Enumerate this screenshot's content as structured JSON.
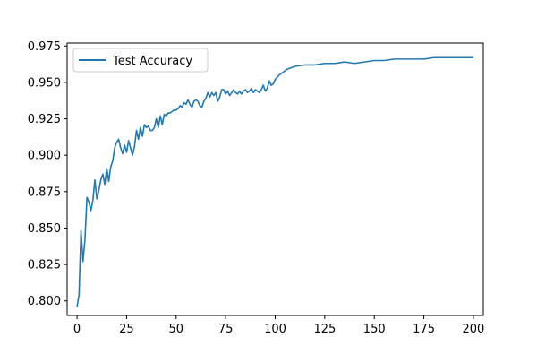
{
  "chart_data": {
    "type": "line",
    "title": "",
    "xlabel": "",
    "ylabel": "",
    "xlim": [
      -5,
      205
    ],
    "ylim": [
      0.79,
      0.977
    ],
    "xticks": [
      0,
      25,
      50,
      75,
      100,
      125,
      150,
      175,
      200
    ],
    "xtick_labels": [
      "0",
      "25",
      "50",
      "75",
      "100",
      "125",
      "150",
      "175",
      "200"
    ],
    "yticks": [
      0.8,
      0.825,
      0.85,
      0.875,
      0.9,
      0.925,
      0.95,
      0.975
    ],
    "ytick_labels": [
      "0.800",
      "0.825",
      "0.850",
      "0.875",
      "0.900",
      "0.925",
      "0.950",
      "0.975"
    ],
    "grid": false,
    "legend": {
      "position": "upper-left"
    },
    "series": [
      {
        "name": "Test Accuracy",
        "color": "#1f77b4",
        "x": [
          0,
          1,
          2,
          3,
          4,
          5,
          6,
          7,
          8,
          9,
          10,
          11,
          12,
          13,
          14,
          15,
          16,
          17,
          18,
          19,
          20,
          21,
          22,
          23,
          24,
          25,
          26,
          27,
          28,
          29,
          30,
          31,
          32,
          33,
          34,
          35,
          36,
          37,
          38,
          39,
          40,
          41,
          42,
          43,
          44,
          45,
          46,
          47,
          48,
          49,
          50,
          51,
          52,
          53,
          54,
          55,
          56,
          57,
          58,
          59,
          60,
          61,
          62,
          63,
          64,
          65,
          66,
          67,
          68,
          69,
          70,
          71,
          72,
          73,
          74,
          75,
          76,
          77,
          78,
          79,
          80,
          81,
          82,
          83,
          84,
          85,
          86,
          87,
          88,
          89,
          90,
          91,
          92,
          93,
          94,
          95,
          96,
          97,
          98,
          99,
          100,
          102,
          104,
          106,
          108,
          110,
          115,
          120,
          125,
          130,
          135,
          140,
          145,
          150,
          155,
          160,
          165,
          170,
          175,
          180,
          185,
          190,
          195,
          200
        ],
        "y": [
          0.796,
          0.804,
          0.848,
          0.827,
          0.842,
          0.871,
          0.868,
          0.862,
          0.869,
          0.883,
          0.87,
          0.876,
          0.883,
          0.887,
          0.88,
          0.891,
          0.882,
          0.892,
          0.896,
          0.905,
          0.909,
          0.911,
          0.905,
          0.901,
          0.907,
          0.902,
          0.91,
          0.905,
          0.9,
          0.906,
          0.917,
          0.911,
          0.919,
          0.913,
          0.921,
          0.919,
          0.92,
          0.917,
          0.917,
          0.919,
          0.925,
          0.919,
          0.927,
          0.921,
          0.928,
          0.927,
          0.929,
          0.929,
          0.93,
          0.931,
          0.931,
          0.932,
          0.934,
          0.933,
          0.936,
          0.935,
          0.938,
          0.935,
          0.933,
          0.937,
          0.938,
          0.937,
          0.934,
          0.933,
          0.937,
          0.939,
          0.943,
          0.94,
          0.943,
          0.941,
          0.943,
          0.937,
          0.94,
          0.945,
          0.945,
          0.942,
          0.944,
          0.941,
          0.943,
          0.945,
          0.943,
          0.942,
          0.944,
          0.942,
          0.944,
          0.945,
          0.943,
          0.944,
          0.946,
          0.943,
          0.945,
          0.944,
          0.943,
          0.945,
          0.948,
          0.944,
          0.946,
          0.951,
          0.948,
          0.949,
          0.952,
          0.955,
          0.957,
          0.959,
          0.96,
          0.961,
          0.962,
          0.962,
          0.963,
          0.963,
          0.964,
          0.963,
          0.964,
          0.965,
          0.965,
          0.966,
          0.966,
          0.966,
          0.966,
          0.967,
          0.967,
          0.967,
          0.967,
          0.967
        ]
      }
    ]
  }
}
